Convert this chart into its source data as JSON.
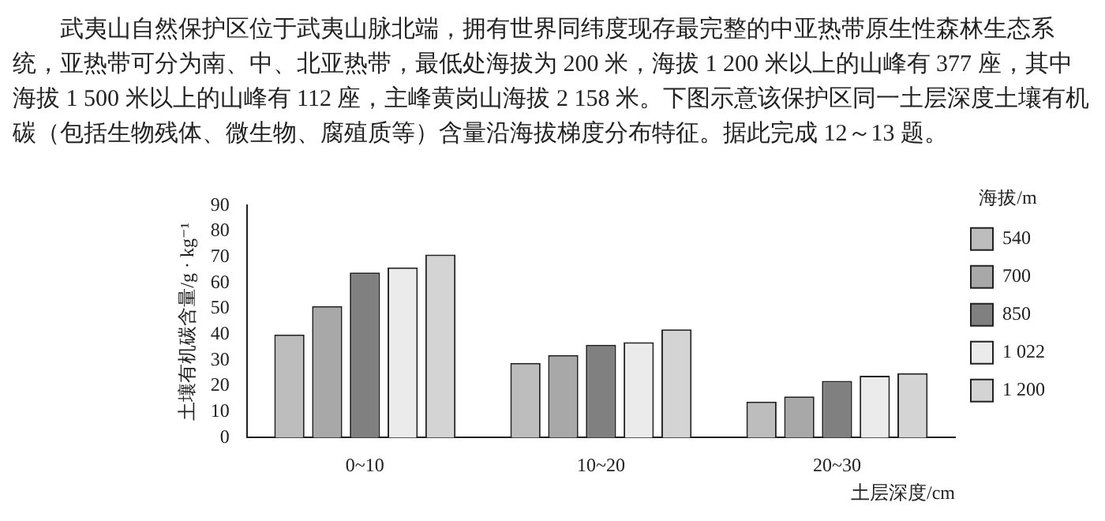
{
  "chart_data": {
    "type": "bar",
    "annotations": [
      "武夷山自然保护区位于武夷山脉北端，拥有世界同纬度现存最完整的中亚热带原生性森林生态系统，亚热带可分为南、中、北亚热带，最低处海拔为 200 米，海拔 1 200 米以上的山峰有 377 座，其中海拔 1 500 米以上的山峰有 112 座，主峰黄岗山海拔 2 158 米。下图示意该保护区同一土层深度土壤有机碳（包括生物残体、微生物、腐殖质等）含量沿海拔梯度分布特征。据此完成 12～13 题。"
    ],
    "categories": [
      "0~10",
      "10~20",
      "20~30"
    ],
    "xlabel": "土层深度/cm",
    "ylabel": "土壤有机碳含量/g · kg⁻¹",
    "legend_title": "海拔/m",
    "series": [
      {
        "name": "540",
        "color": "#bdbdbd",
        "values": [
          40,
          29,
          14
        ]
      },
      {
        "name": "700",
        "color": "#a8a8a8",
        "values": [
          51,
          32,
          16
        ]
      },
      {
        "name": "850",
        "color": "#808080",
        "values": [
          64,
          36,
          22
        ]
      },
      {
        "name": "1 022",
        "color": "#ebebeb",
        "values": [
          66,
          37,
          24
        ]
      },
      {
        "name": "1 200",
        "color": "#d4d4d4",
        "values": [
          71,
          42,
          25
        ]
      }
    ],
    "ylim": [
      0,
      90
    ],
    "yticks": [
      0,
      10,
      20,
      30,
      40,
      50,
      60,
      70,
      80,
      90
    ],
    "grid": false,
    "legend": "right"
  }
}
